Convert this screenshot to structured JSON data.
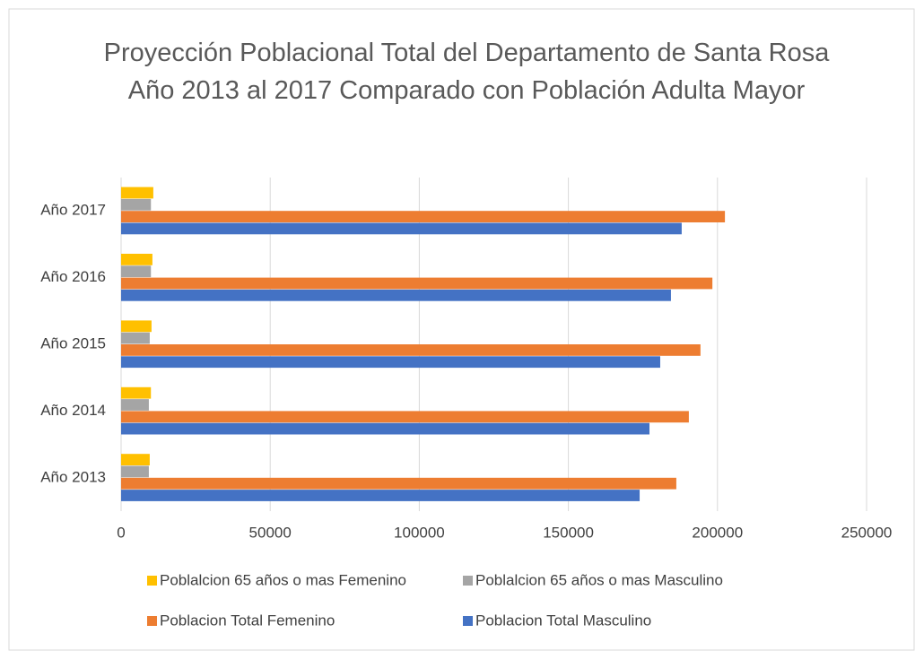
{
  "chart_data": {
    "type": "bar",
    "orientation": "horizontal",
    "title": "Proyección Poblacional Total del Departamento de Santa Rosa Año 2013 al 2017 Comparado con Población Adulta Mayor",
    "categories": [
      "Año 2013",
      "Año 2014",
      "Año 2015",
      "Año 2016",
      "Año 2017"
    ],
    "series": [
      {
        "name": "Poblalcion 65 años o mas Femenino",
        "color": "#ffc000",
        "values": [
          9600,
          10000,
          10200,
          10500,
          10800
        ]
      },
      {
        "name": "Poblalcion 65 años o mas Masculino",
        "color": "#a5a5a5",
        "values": [
          9300,
          9300,
          9600,
          10000,
          10000
        ]
      },
      {
        "name": "Poblacion Total Femenino",
        "color": "#ed7d31",
        "values": [
          186200,
          190400,
          194300,
          198300,
          202500
        ]
      },
      {
        "name": "Poblacion Total Masculino",
        "color": "#4472c4",
        "values": [
          173900,
          177200,
          180800,
          184400,
          188000
        ]
      }
    ],
    "xlim": [
      0,
      250000
    ],
    "xticks": [
      0,
      50000,
      100000,
      150000,
      200000,
      250000
    ],
    "grid": true
  }
}
